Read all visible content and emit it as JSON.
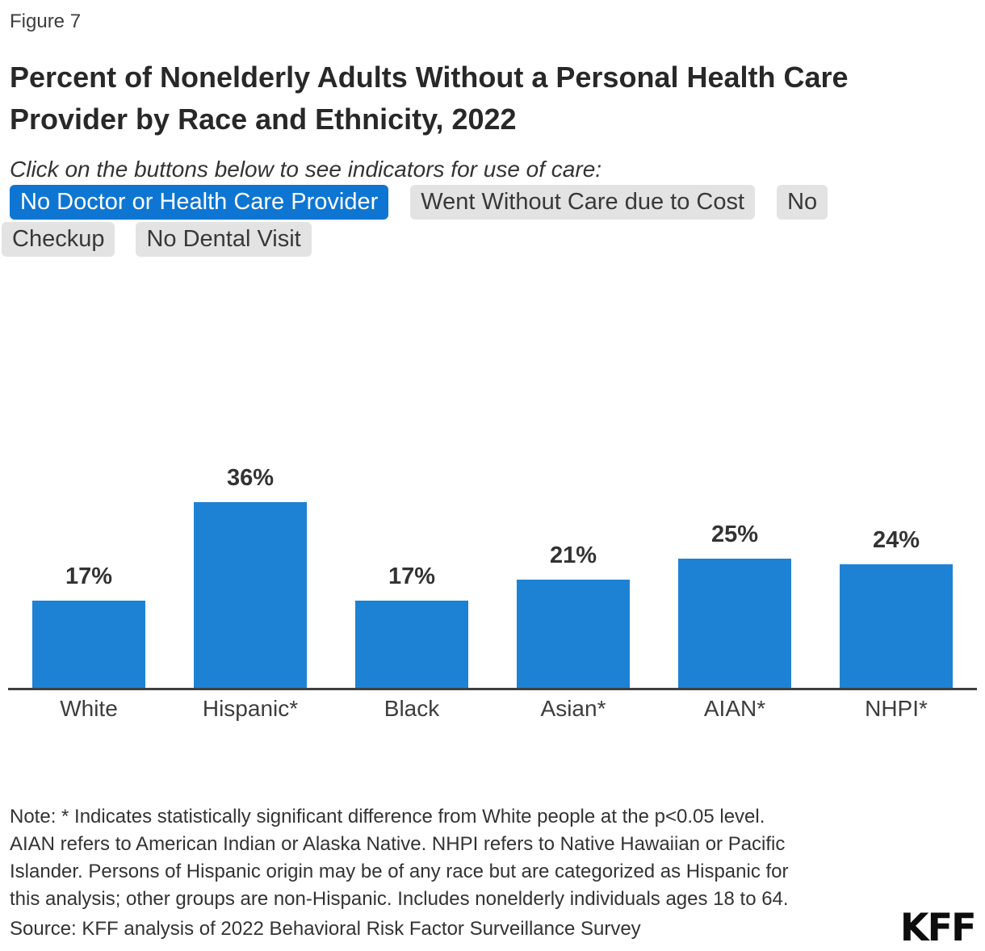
{
  "figure_label": "Figure 7",
  "title_lines": [
    "Percent of Nonelderly Adults Without a Personal Health Care",
    "Provider by Race and Ethnicity, 2022"
  ],
  "subtitle": "Click on the buttons below to see indicators for use of care:",
  "colors": {
    "accent_blue": "#0e76d2",
    "bar_blue": "#1e82d4",
    "chip_gray": "#e3e3e3",
    "text_dark": "#333333",
    "axis_line": "#3f3f3f"
  },
  "buttons": [
    {
      "label": "No Doctor or Health Care Provider",
      "active": true
    },
    {
      "label": "Went Without Care due to Cost",
      "active": false
    },
    {
      "label": "No Checkup",
      "active": false,
      "wrapped_fragments": [
        "No",
        "Checkup"
      ]
    },
    {
      "label": "No Dental Visit",
      "active": false
    }
  ],
  "chart_data": {
    "type": "bar",
    "title": "Percent of Nonelderly Adults Without a Personal Health Care Provider by Race and Ethnicity, 2022",
    "categories": [
      "White",
      "Hispanic*",
      "Black",
      "Asian*",
      "AIAN*",
      "NHPI*"
    ],
    "values": [
      17,
      36,
      17,
      21,
      25,
      24
    ],
    "data_labels": [
      "17%",
      "36%",
      "17%",
      "21%",
      "25%",
      "24%"
    ],
    "value_suffix": "%",
    "xlabel": "",
    "ylabel": "",
    "ylim": [
      0,
      40
    ],
    "grid": false,
    "legend": false,
    "y_axis_visible": false,
    "bar_color": "#1e82d4"
  },
  "note_lines": [
    "Note: * Indicates statistically significant difference from White people at the p<0.05 level.",
    "AIAN refers to American Indian or Alaska Native. NHPI refers to Native Hawaiian or Pacific",
    "Islander. Persons of Hispanic origin may be of any race but are categorized as Hispanic for",
    "this analysis; other groups are non-Hispanic. Includes nonelderly individuals ages 18 to 64."
  ],
  "source": "Source: KFF analysis of 2022 Behavioral Risk Factor Surveillance Survey",
  "logo_text": "KFF"
}
